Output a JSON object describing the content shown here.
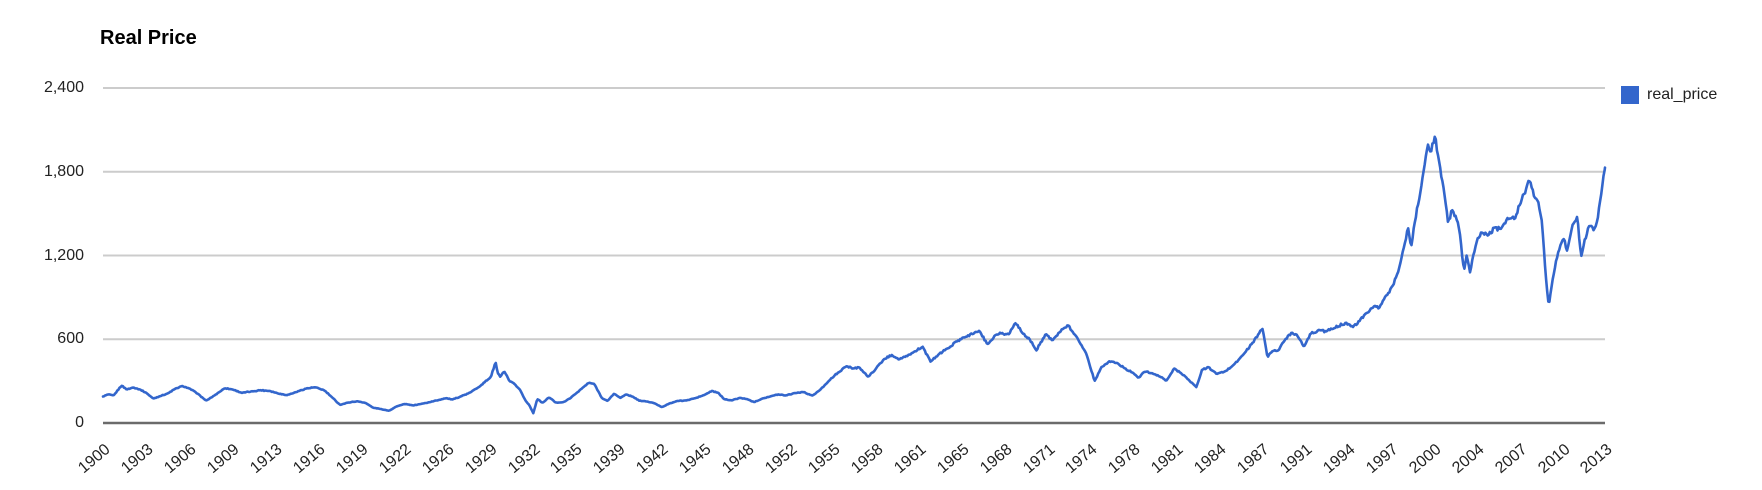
{
  "chart": {
    "title": "Real Price",
    "legend": {
      "label": "real_price",
      "swatch_color": "#3366cc",
      "position": "right"
    },
    "colors": {
      "line": "#3366cc",
      "gridline": "#cccccc",
      "baseline": "#6b6b6b",
      "axis_text": "#222222",
      "title_text": "#000000",
      "background": "#ffffff"
    }
  },
  "chart_data": {
    "type": "line",
    "title": "Real Price",
    "xlabel": "",
    "ylabel": "",
    "grid": "horizontal",
    "legend_position": "right",
    "x_tick_rotation_deg": -40,
    "xlim": [
      1900,
      2013.45
    ],
    "ylim": [
      0,
      2400
    ],
    "y_ticks": [
      {
        "value": 0,
        "label": "0"
      },
      {
        "value": 600,
        "label": "600"
      },
      {
        "value": 1200,
        "label": "1,200"
      },
      {
        "value": 1800,
        "label": "1,800"
      },
      {
        "value": 2400,
        "label": "2,400"
      }
    ],
    "x_tick_labels": [
      "1900",
      "1903",
      "1906",
      "1909",
      "1913",
      "1916",
      "1919",
      "1922",
      "1926",
      "1929",
      "1932",
      "1935",
      "1939",
      "1942",
      "1945",
      "1948",
      "1952",
      "1955",
      "1958",
      "1961",
      "1965",
      "1968",
      "1971",
      "1974",
      "1978",
      "1981",
      "1984",
      "1987",
      "1991",
      "1994",
      "1997",
      "2000",
      "2004",
      "2007",
      "2010",
      "2013"
    ],
    "series": [
      {
        "name": "real_price",
        "color": "#3366cc",
        "points": [
          [
            1900.0,
            190
          ],
          [
            1900.4,
            205
          ],
          [
            1900.8,
            196
          ],
          [
            1901.4,
            268
          ],
          [
            1901.8,
            240
          ],
          [
            1902.3,
            255
          ],
          [
            1902.8,
            240
          ],
          [
            1903.3,
            214
          ],
          [
            1903.8,
            175
          ],
          [
            1904.3,
            192
          ],
          [
            1904.9,
            212
          ],
          [
            1905.4,
            242
          ],
          [
            1906.0,
            265
          ],
          [
            1906.5,
            248
          ],
          [
            1907.0,
            220
          ],
          [
            1907.8,
            160
          ],
          [
            1908.4,
            196
          ],
          [
            1909.2,
            250
          ],
          [
            1909.8,
            240
          ],
          [
            1910.5,
            216
          ],
          [
            1911.2,
            226
          ],
          [
            1911.9,
            235
          ],
          [
            1912.6,
            230
          ],
          [
            1913.3,
            210
          ],
          [
            1913.9,
            200
          ],
          [
            1914.6,
            222
          ],
          [
            1915.3,
            246
          ],
          [
            1916.0,
            256
          ],
          [
            1916.7,
            235
          ],
          [
            1917.3,
            184
          ],
          [
            1917.9,
            130
          ],
          [
            1918.5,
            146
          ],
          [
            1919.2,
            156
          ],
          [
            1919.8,
            145
          ],
          [
            1920.4,
            110
          ],
          [
            1921.0,
            100
          ],
          [
            1921.6,
            88
          ],
          [
            1922.2,
            120
          ],
          [
            1922.8,
            136
          ],
          [
            1923.4,
            126
          ],
          [
            1924.0,
            136
          ],
          [
            1924.7,
            150
          ],
          [
            1925.4,
            166
          ],
          [
            1925.9,
            178
          ],
          [
            1926.4,
            168
          ],
          [
            1927.0,
            190
          ],
          [
            1927.6,
            212
          ],
          [
            1928.2,
            246
          ],
          [
            1928.8,
            290
          ],
          [
            1929.3,
            330
          ],
          [
            1929.65,
            438
          ],
          [
            1929.8,
            360
          ],
          [
            1930.0,
            332
          ],
          [
            1930.3,
            370
          ],
          [
            1930.7,
            300
          ],
          [
            1931.1,
            278
          ],
          [
            1931.5,
            238
          ],
          [
            1931.9,
            162
          ],
          [
            1932.2,
            128
          ],
          [
            1932.5,
            70
          ],
          [
            1932.8,
            172
          ],
          [
            1933.2,
            144
          ],
          [
            1933.7,
            184
          ],
          [
            1934.2,
            146
          ],
          [
            1934.8,
            150
          ],
          [
            1935.3,
            178
          ],
          [
            1936.0,
            234
          ],
          [
            1936.7,
            288
          ],
          [
            1937.1,
            280
          ],
          [
            1937.7,
            176
          ],
          [
            1938.1,
            158
          ],
          [
            1938.6,
            210
          ],
          [
            1939.1,
            180
          ],
          [
            1939.5,
            204
          ],
          [
            1940.0,
            190
          ],
          [
            1940.5,
            160
          ],
          [
            1941.1,
            154
          ],
          [
            1941.7,
            140
          ],
          [
            1942.2,
            114
          ],
          [
            1942.8,
            140
          ],
          [
            1943.4,
            158
          ],
          [
            1944.1,
            162
          ],
          [
            1944.8,
            180
          ],
          [
            1945.4,
            200
          ],
          [
            1946.0,
            230
          ],
          [
            1946.5,
            214
          ],
          [
            1946.9,
            172
          ],
          [
            1947.5,
            162
          ],
          [
            1948.1,
            180
          ],
          [
            1948.6,
            172
          ],
          [
            1949.2,
            150
          ],
          [
            1949.8,
            176
          ],
          [
            1950.4,
            190
          ],
          [
            1951.0,
            205
          ],
          [
            1951.6,
            198
          ],
          [
            1952.2,
            214
          ],
          [
            1952.9,
            222
          ],
          [
            1953.6,
            196
          ],
          [
            1954.2,
            240
          ],
          [
            1954.8,
            300
          ],
          [
            1955.5,
            360
          ],
          [
            1956.2,
            408
          ],
          [
            1956.7,
            390
          ],
          [
            1957.1,
            400
          ],
          [
            1957.8,
            330
          ],
          [
            1958.4,
            392
          ],
          [
            1959.0,
            458
          ],
          [
            1959.6,
            488
          ],
          [
            1960.1,
            455
          ],
          [
            1960.6,
            474
          ],
          [
            1961.2,
            505
          ],
          [
            1961.9,
            548
          ],
          [
            1962.5,
            440
          ],
          [
            1963.1,
            490
          ],
          [
            1963.8,
            534
          ],
          [
            1964.5,
            584
          ],
          [
            1965.2,
            618
          ],
          [
            1965.9,
            652
          ],
          [
            1966.2,
            660
          ],
          [
            1966.8,
            562
          ],
          [
            1967.4,
            630
          ],
          [
            1967.9,
            645
          ],
          [
            1968.4,
            634
          ],
          [
            1968.9,
            718
          ],
          [
            1969.5,
            640
          ],
          [
            1970.0,
            598
          ],
          [
            1970.5,
            520
          ],
          [
            1971.2,
            640
          ],
          [
            1971.7,
            592
          ],
          [
            1972.3,
            654
          ],
          [
            1972.9,
            700
          ],
          [
            1973.4,
            634
          ],
          [
            1973.9,
            560
          ],
          [
            1974.3,
            490
          ],
          [
            1974.9,
            300
          ],
          [
            1975.4,
            400
          ],
          [
            1976.0,
            442
          ],
          [
            1976.6,
            430
          ],
          [
            1977.2,
            390
          ],
          [
            1977.8,
            360
          ],
          [
            1978.2,
            322
          ],
          [
            1978.7,
            370
          ],
          [
            1979.3,
            354
          ],
          [
            1979.9,
            330
          ],
          [
            1980.3,
            302
          ],
          [
            1980.9,
            390
          ],
          [
            1981.4,
            360
          ],
          [
            1982.0,
            310
          ],
          [
            1982.6,
            256
          ],
          [
            1983.0,
            380
          ],
          [
            1983.5,
            400
          ],
          [
            1984.1,
            352
          ],
          [
            1984.7,
            366
          ],
          [
            1985.2,
            400
          ],
          [
            1985.8,
            455
          ],
          [
            1986.3,
            510
          ],
          [
            1986.8,
            570
          ],
          [
            1987.3,
            640
          ],
          [
            1987.6,
            676
          ],
          [
            1987.95,
            470
          ],
          [
            1988.3,
            514
          ],
          [
            1988.8,
            522
          ],
          [
            1989.3,
            600
          ],
          [
            1989.8,
            650
          ],
          [
            1990.2,
            630
          ],
          [
            1990.7,
            545
          ],
          [
            1991.2,
            640
          ],
          [
            1991.9,
            666
          ],
          [
            1992.4,
            656
          ],
          [
            1993.0,
            680
          ],
          [
            1993.9,
            720
          ],
          [
            1994.4,
            686
          ],
          [
            1994.9,
            730
          ],
          [
            1995.5,
            790
          ],
          [
            1996.0,
            836
          ],
          [
            1996.4,
            824
          ],
          [
            1996.9,
            910
          ],
          [
            1997.3,
            965
          ],
          [
            1997.7,
            1050
          ],
          [
            1998.0,
            1150
          ],
          [
            1998.3,
            1280
          ],
          [
            1998.6,
            1400
          ],
          [
            1998.8,
            1250
          ],
          [
            1999.1,
            1450
          ],
          [
            1999.5,
            1650
          ],
          [
            1999.9,
            1900
          ],
          [
            2000.1,
            2000
          ],
          [
            2000.3,
            1930
          ],
          [
            2000.6,
            2060
          ],
          [
            2000.9,
            1880
          ],
          [
            2001.2,
            1720
          ],
          [
            2001.6,
            1430
          ],
          [
            2001.9,
            1530
          ],
          [
            2002.2,
            1480
          ],
          [
            2002.5,
            1350
          ],
          [
            2002.8,
            1090
          ],
          [
            2003.0,
            1200
          ],
          [
            2003.25,
            1080
          ],
          [
            2003.7,
            1280
          ],
          [
            2004.1,
            1370
          ],
          [
            2004.6,
            1340
          ],
          [
            2005.1,
            1400
          ],
          [
            2005.6,
            1390
          ],
          [
            2006.1,
            1470
          ],
          [
            2006.6,
            1460
          ],
          [
            2007.1,
            1580
          ],
          [
            2007.5,
            1680
          ],
          [
            2007.8,
            1740
          ],
          [
            2008.1,
            1620
          ],
          [
            2008.4,
            1590
          ],
          [
            2008.7,
            1430
          ],
          [
            2008.95,
            1080
          ],
          [
            2009.2,
            840
          ],
          [
            2009.5,
            1030
          ],
          [
            2009.9,
            1220
          ],
          [
            2010.3,
            1330
          ],
          [
            2010.6,
            1230
          ],
          [
            2011.0,
            1420
          ],
          [
            2011.35,
            1480
          ],
          [
            2011.65,
            1190
          ],
          [
            2011.9,
            1310
          ],
          [
            2012.3,
            1420
          ],
          [
            2012.6,
            1380
          ],
          [
            2012.9,
            1460
          ],
          [
            2013.1,
            1600
          ],
          [
            2013.45,
            1830
          ]
        ]
      }
    ]
  }
}
